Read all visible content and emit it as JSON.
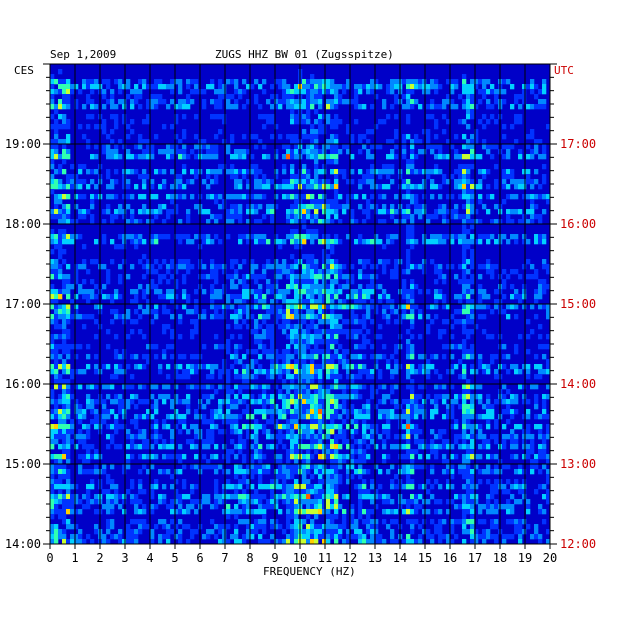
{
  "chart_data": {
    "type": "heatmap",
    "date": "Sep 1,2009",
    "title": "ZUGS HHZ BW 01 (Zugsspitze)",
    "xlabel": "FREQUENCY (HZ)",
    "xlim": [
      0,
      20
    ],
    "x_ticks": [
      "0",
      "1",
      "2",
      "3",
      "4",
      "5",
      "6",
      "7",
      "8",
      "9",
      "10",
      "11",
      "12",
      "13",
      "14",
      "15",
      "16",
      "17",
      "18",
      "19",
      "20"
    ],
    "left_axis_label": "CES",
    "right_axis_label": "UTC",
    "left_time_ticks": [
      "19:00",
      "18:00",
      "17:00",
      "16:00",
      "15:00",
      "14:00"
    ],
    "right_time_ticks": [
      "17:00",
      "16:00",
      "15:00",
      "14:00",
      "13:00",
      "12:00"
    ],
    "time_range_local": [
      "14:00",
      "20:00"
    ],
    "grid": true,
    "colorscale": [
      "#00007a",
      "#0000c8",
      "#0033ff",
      "#0088ff",
      "#00d0ff",
      "#30ffb0",
      "#c8ff30",
      "#ffd000",
      "#ff6000",
      "#d00000"
    ],
    "energy_bands_hz": [
      [
        0,
        0.8
      ],
      [
        9.5,
        11.5
      ],
      [
        14.2,
        14.5
      ],
      [
        16.5,
        17
      ]
    ]
  }
}
